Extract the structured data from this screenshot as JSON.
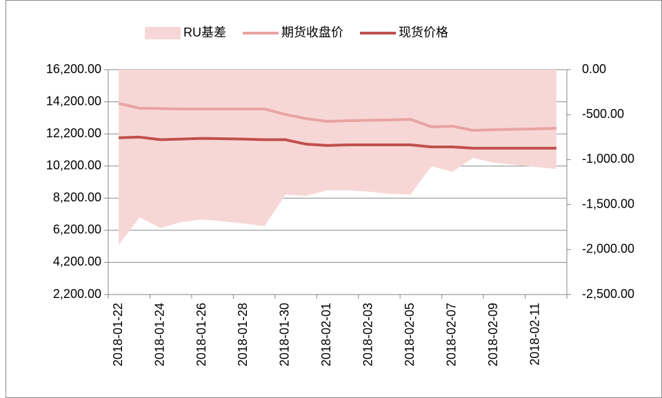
{
  "chart_data": {
    "type": "line",
    "categories": [
      "2018-01-22",
      null,
      "2018-01-24",
      null,
      "2018-01-26",
      null,
      "2018-01-28",
      null,
      "2018-01-30",
      null,
      "2018-02-01",
      null,
      "2018-02-03",
      null,
      "2018-02-05",
      null,
      "2018-02-07",
      null,
      "2018-02-09",
      null,
      "2018-02-11",
      null
    ],
    "series": [
      {
        "name": "RU基差",
        "type": "area",
        "axis": "y2",
        "color": "#f7d7d6",
        "values": [
          -1950,
          -1640,
          -1760,
          -1695,
          -1665,
          -1687,
          -1710,
          -1740,
          -1390,
          -1403,
          -1342,
          -1342,
          -1357,
          -1380,
          -1388,
          -1074,
          -1135,
          -982,
          -1035,
          -1058,
          -1081,
          -1104
        ]
      },
      {
        "name": "期货收盘价",
        "type": "line",
        "color": "#e8a3a3",
        "values": [
          14100,
          13800,
          13780,
          13750,
          13750,
          13750,
          13750,
          13750,
          13410,
          13150,
          12980,
          13020,
          13050,
          13070,
          13110,
          12640,
          12680,
          12420,
          12460,
          12490,
          12510,
          12550
        ]
      },
      {
        "name": "现货价格",
        "type": "line",
        "color": "#c0504d",
        "values": [
          11960,
          12000,
          11840,
          11880,
          11920,
          11900,
          11880,
          11840,
          11840,
          11560,
          11480,
          11520,
          11520,
          11520,
          11520,
          11390,
          11390,
          11310,
          11310,
          11310,
          11310,
          11310
        ]
      }
    ],
    "ylim": [
      2200,
      16200
    ],
    "yticks": [
      {
        "value": 2200,
        "label": "2,200.00"
      },
      {
        "value": 4200,
        "label": "4,200.00"
      },
      {
        "value": 6200,
        "label": "6,200.00"
      },
      {
        "value": 8200,
        "label": "8,200.00"
      },
      {
        "value": 10200,
        "label": "10,200.00"
      },
      {
        "value": 12200,
        "label": "12,200.00"
      },
      {
        "value": 14200,
        "label": "14,200.00"
      },
      {
        "value": 16200,
        "label": "16,200.00"
      }
    ],
    "y2lim": [
      -2500,
      0
    ],
    "y2ticks": [
      {
        "value": -2500,
        "label": "-2,500.00"
      },
      {
        "value": -2000,
        "label": "-2,000.00"
      },
      {
        "value": -1500,
        "label": "-1,500.00"
      },
      {
        "value": -1000,
        "label": "-1,000.00"
      },
      {
        "value": -500,
        "label": "-500.00"
      },
      {
        "value": 0,
        "label": "0.00"
      }
    ],
    "grid": true,
    "legend": "top"
  }
}
